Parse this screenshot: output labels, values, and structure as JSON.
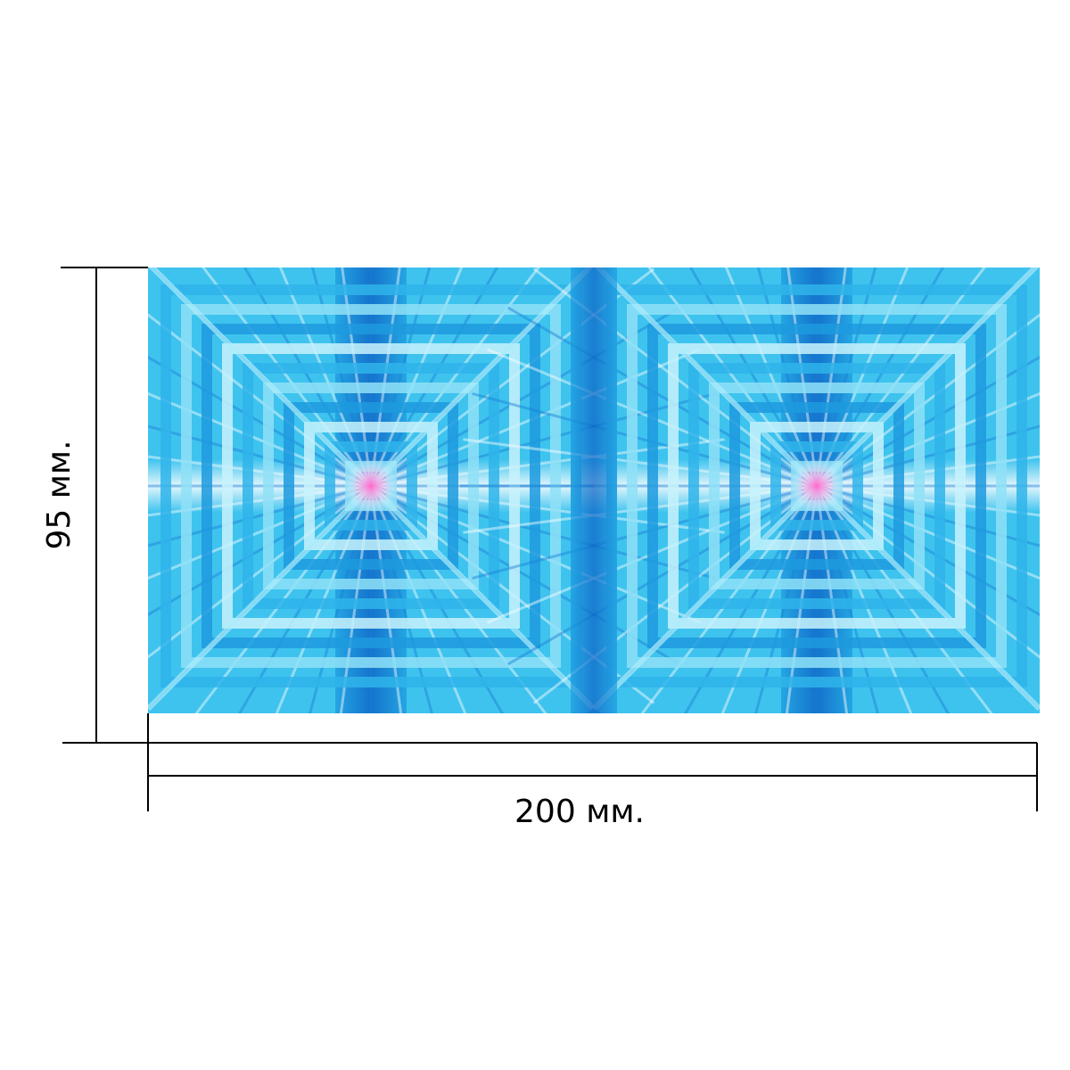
{
  "height_label": "95 мм.",
  "width_label": "200 мм."
}
